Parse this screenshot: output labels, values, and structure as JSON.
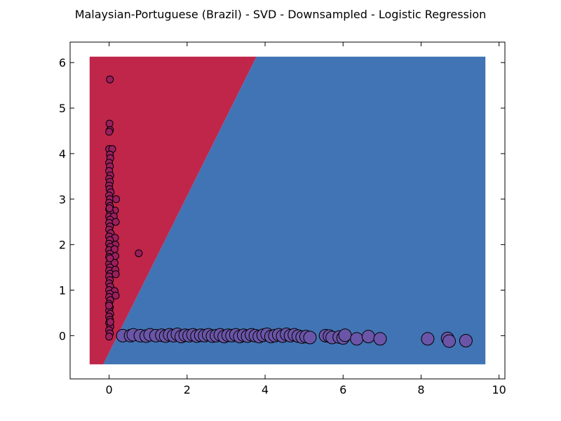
{
  "chart_data": {
    "type": "scatter",
    "title": "Malaysian-Portuguese (Brazil) - SVD - Downsampled - Logistic Regression",
    "xlabel": "",
    "ylabel": "",
    "xlim": [
      -1,
      10.15
    ],
    "ylim": [
      -0.95,
      6.45
    ],
    "x_ticks": [
      0,
      2,
      4,
      6,
      8,
      10
    ],
    "y_ticks": [
      0,
      1,
      2,
      3,
      4,
      5,
      6
    ],
    "grid": false,
    "legend": "none",
    "decision_regions": {
      "extent": {
        "x": [
          -0.5,
          9.65
        ],
        "y": [
          -0.63,
          6.13
        ]
      },
      "boundary": [
        [
          -0.15,
          -0.63
        ],
        [
          3.78,
          6.13
        ]
      ],
      "left_region_color": "#c0264a",
      "right_region_color": "#4174b4"
    },
    "series": [
      {
        "color": "#9b1f5e",
        "marker_size": "small",
        "points": [
          [
            0.02,
            5.63
          ],
          [
            0.01,
            4.66
          ],
          [
            0.02,
            4.52
          ],
          [
            0.0,
            4.48
          ],
          [
            0.0,
            4.1
          ],
          [
            0.08,
            4.1
          ],
          [
            0.02,
            3.98
          ],
          [
            0.03,
            3.9
          ],
          [
            0.0,
            3.8
          ],
          [
            0.02,
            3.72
          ],
          [
            0.0,
            3.62
          ],
          [
            0.03,
            3.52
          ],
          [
            0.0,
            3.45
          ],
          [
            0.02,
            3.38
          ],
          [
            0.0,
            3.3
          ],
          [
            0.01,
            3.22
          ],
          [
            0.04,
            3.15
          ],
          [
            0.0,
            3.08
          ],
          [
            0.02,
            3.0
          ],
          [
            0.18,
            3.0
          ],
          [
            0.0,
            2.92
          ],
          [
            0.02,
            2.85
          ],
          [
            0.0,
            2.78
          ],
          [
            0.15,
            2.75
          ],
          [
            0.03,
            2.7
          ],
          [
            0.0,
            2.62
          ],
          [
            0.12,
            2.62
          ],
          [
            0.02,
            2.55
          ],
          [
            0.0,
            2.48
          ],
          [
            0.17,
            2.5
          ],
          [
            0.02,
            2.4
          ],
          [
            0.0,
            2.33
          ],
          [
            0.04,
            2.25
          ],
          [
            0.0,
            2.18
          ],
          [
            0.15,
            2.15
          ],
          [
            0.02,
            2.1
          ],
          [
            0.0,
            2.02
          ],
          [
            0.16,
            2.0
          ],
          [
            0.03,
            1.95
          ],
          [
            0.0,
            1.88
          ],
          [
            0.14,
            1.9
          ],
          [
            0.02,
            1.8
          ],
          [
            0.76,
            1.81
          ],
          [
            0.0,
            1.73
          ],
          [
            0.16,
            1.75
          ],
          [
            0.03,
            1.66
          ],
          [
            0.0,
            1.58
          ],
          [
            0.14,
            1.6
          ],
          [
            0.02,
            1.5
          ],
          [
            0.0,
            1.43
          ],
          [
            0.16,
            1.45
          ],
          [
            0.03,
            1.36
          ],
          [
            0.0,
            1.3
          ],
          [
            0.17,
            1.35
          ],
          [
            0.02,
            1.22
          ],
          [
            0.0,
            1.15
          ],
          [
            0.03,
            1.08
          ],
          [
            0.0,
            1.0
          ],
          [
            0.14,
            0.98
          ],
          [
            0.02,
            0.92
          ],
          [
            0.0,
            0.85
          ],
          [
            0.17,
            0.88
          ],
          [
            0.03,
            0.78
          ],
          [
            0.0,
            0.7
          ],
          [
            0.02,
            0.62
          ],
          [
            0.0,
            0.55
          ],
          [
            0.03,
            0.48
          ],
          [
            0.0,
            0.42
          ],
          [
            0.02,
            0.35
          ],
          [
            0.0,
            0.28
          ],
          [
            0.03,
            0.2
          ],
          [
            0.0,
            0.12
          ],
          [
            0.02,
            0.05
          ],
          [
            0.0,
            -0.02
          ],
          [
            0.03,
            0.3
          ],
          [
            0.0,
            0.66
          ],
          [
            0.02,
            1.7
          ],
          [
            0.01,
            2.8
          ]
        ]
      },
      {
        "color": "#6a55a8",
        "marker_size": "large",
        "points": [
          [
            0.35,
            0.0
          ],
          [
            0.55,
            0.0
          ],
          [
            0.62,
            0.02
          ],
          [
            0.8,
            0.0
          ],
          [
            0.95,
            -0.01
          ],
          [
            1.05,
            0.02
          ],
          [
            1.2,
            0.0
          ],
          [
            1.35,
            0.01
          ],
          [
            1.45,
            -0.01
          ],
          [
            1.55,
            0.02
          ],
          [
            1.65,
            0.0
          ],
          [
            1.75,
            0.03
          ],
          [
            1.85,
            -0.02
          ],
          [
            1.95,
            0.01
          ],
          [
            2.05,
            0.0
          ],
          [
            2.15,
            0.02
          ],
          [
            2.25,
            -0.01
          ],
          [
            2.35,
            0.01
          ],
          [
            2.45,
            0.0
          ],
          [
            2.55,
            0.02
          ],
          [
            2.65,
            -0.01
          ],
          [
            2.75,
            0.0
          ],
          [
            2.85,
            0.02
          ],
          [
            2.95,
            -0.02
          ],
          [
            3.05,
            0.01
          ],
          [
            3.15,
            0.0
          ],
          [
            3.25,
            0.02
          ],
          [
            3.35,
            -0.02
          ],
          [
            3.45,
            0.01
          ],
          [
            3.55,
            -0.01
          ],
          [
            3.65,
            0.02
          ],
          [
            3.75,
            0.0
          ],
          [
            3.85,
            -0.02
          ],
          [
            3.95,
            0.01
          ],
          [
            4.05,
            0.03
          ],
          [
            4.15,
            -0.02
          ],
          [
            4.25,
            0.0
          ],
          [
            4.35,
            0.02
          ],
          [
            4.45,
            -0.01
          ],
          [
            4.55,
            0.03
          ],
          [
            4.65,
            0.0
          ],
          [
            4.75,
            0.02
          ],
          [
            4.85,
            -0.01
          ],
          [
            4.95,
            -0.03
          ],
          [
            5.05,
            -0.02
          ],
          [
            5.15,
            -0.04
          ],
          [
            5.55,
            0.0
          ],
          [
            5.65,
            -0.01
          ],
          [
            5.72,
            -0.04
          ],
          [
            5.9,
            -0.03
          ],
          [
            6.0,
            -0.05
          ],
          [
            6.05,
            0.01
          ],
          [
            6.35,
            -0.07
          ],
          [
            6.65,
            -0.02
          ],
          [
            6.95,
            -0.07
          ],
          [
            8.17,
            -0.07
          ],
          [
            8.68,
            -0.06
          ],
          [
            8.72,
            -0.12
          ],
          [
            9.15,
            -0.11
          ]
        ]
      }
    ]
  }
}
